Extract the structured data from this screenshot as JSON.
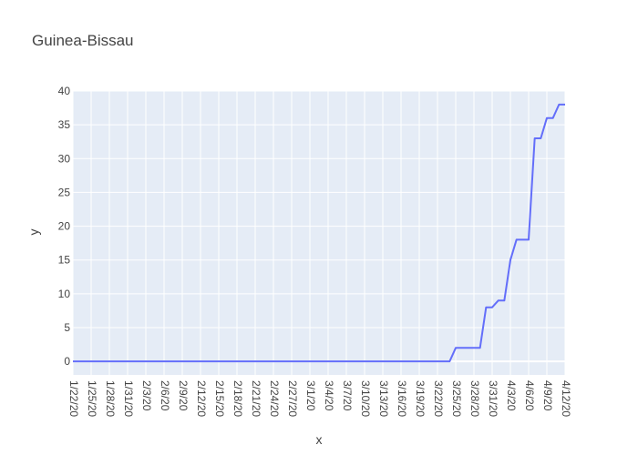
{
  "chart_data": {
    "type": "line",
    "title": "Guinea-Bissau",
    "xlabel": "x",
    "ylabel": "y",
    "ylim": [
      -2,
      40
    ],
    "yticks": [
      0,
      5,
      10,
      15,
      20,
      25,
      30,
      35,
      40
    ],
    "x_tick_labels": [
      "1/22/20",
      "1/25/20",
      "1/28/20",
      "1/31/20",
      "2/3/20",
      "2/6/20",
      "2/9/20",
      "2/12/20",
      "2/15/20",
      "2/18/20",
      "2/21/20",
      "2/24/20",
      "2/27/20",
      "3/1/20",
      "3/4/20",
      "3/7/20",
      "3/10/20",
      "3/13/20",
      "3/16/20",
      "3/19/20",
      "3/22/20",
      "3/25/20",
      "3/28/20",
      "3/31/20",
      "4/3/20",
      "4/6/20",
      "4/9/20",
      "4/12/20"
    ],
    "x": [
      "1/22/20",
      "1/23/20",
      "1/24/20",
      "1/25/20",
      "1/26/20",
      "1/27/20",
      "1/28/20",
      "1/29/20",
      "1/30/20",
      "1/31/20",
      "2/1/20",
      "2/2/20",
      "2/3/20",
      "2/4/20",
      "2/5/20",
      "2/6/20",
      "2/7/20",
      "2/8/20",
      "2/9/20",
      "2/10/20",
      "2/11/20",
      "2/12/20",
      "2/13/20",
      "2/14/20",
      "2/15/20",
      "2/16/20",
      "2/17/20",
      "2/18/20",
      "2/19/20",
      "2/20/20",
      "2/21/20",
      "2/22/20",
      "2/23/20",
      "2/24/20",
      "2/25/20",
      "2/26/20",
      "2/27/20",
      "2/28/20",
      "2/29/20",
      "3/1/20",
      "3/2/20",
      "3/3/20",
      "3/4/20",
      "3/5/20",
      "3/6/20",
      "3/7/20",
      "3/8/20",
      "3/9/20",
      "3/10/20",
      "3/11/20",
      "3/12/20",
      "3/13/20",
      "3/14/20",
      "3/15/20",
      "3/16/20",
      "3/17/20",
      "3/18/20",
      "3/19/20",
      "3/20/20",
      "3/21/20",
      "3/22/20",
      "3/23/20",
      "3/24/20",
      "3/25/20",
      "3/26/20",
      "3/27/20",
      "3/28/20",
      "3/29/20",
      "3/30/20",
      "3/31/20",
      "4/1/20",
      "4/2/20",
      "4/3/20",
      "4/4/20",
      "4/5/20",
      "4/6/20",
      "4/7/20",
      "4/8/20",
      "4/9/20",
      "4/10/20",
      "4/11/20",
      "4/12/20"
    ],
    "series": [
      {
        "name": "",
        "color": "#636efa",
        "values": [
          0,
          0,
          0,
          0,
          0,
          0,
          0,
          0,
          0,
          0,
          0,
          0,
          0,
          0,
          0,
          0,
          0,
          0,
          0,
          0,
          0,
          0,
          0,
          0,
          0,
          0,
          0,
          0,
          0,
          0,
          0,
          0,
          0,
          0,
          0,
          0,
          0,
          0,
          0,
          0,
          0,
          0,
          0,
          0,
          0,
          0,
          0,
          0,
          0,
          0,
          0,
          0,
          0,
          0,
          0,
          0,
          0,
          0,
          0,
          0,
          0,
          0,
          0,
          2,
          2,
          2,
          2,
          2,
          8,
          8,
          9,
          9,
          15,
          18,
          18,
          18,
          33,
          33,
          36,
          36,
          38,
          38
        ]
      }
    ],
    "grid": true,
    "plot_bgcolor": "#e5ecf6",
    "gridcolor": "#ffffff"
  }
}
